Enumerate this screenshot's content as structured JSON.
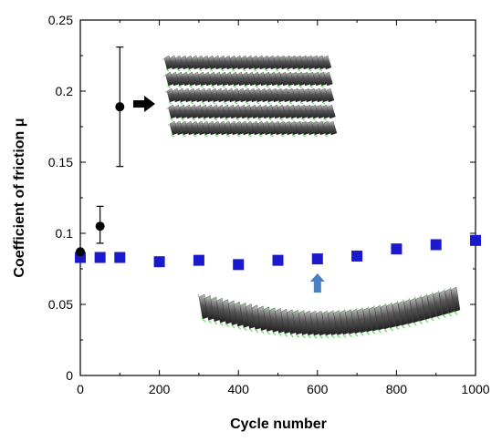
{
  "chart_data": {
    "type": "scatter",
    "xlabel": "Cycle number",
    "ylabel": "Coefficient of friction μ",
    "xlim": [
      0,
      1000
    ],
    "ylim": [
      0,
      0.25
    ],
    "x_ticks": [
      "0",
      "200",
      "400",
      "600",
      "800",
      "1000"
    ],
    "x_tick_values": [
      0,
      200,
      400,
      600,
      800,
      1000
    ],
    "y_ticks": [
      "0",
      "0.05",
      "0.1",
      "0.15",
      "0.2",
      "0.25"
    ],
    "y_tick_values": [
      0,
      0.05,
      0.1,
      0.15,
      0.2,
      0.25
    ],
    "grid": false,
    "series": [
      {
        "marker": "circle",
        "color": "#000000",
        "points": [
          {
            "x": 0,
            "y": 0.087,
            "err_low": 0.087,
            "err_high": 0.087
          },
          {
            "x": 50,
            "y": 0.105,
            "err_low": 0.093,
            "err_high": 0.119
          },
          {
            "x": 100,
            "y": 0.189,
            "err_low": 0.147,
            "err_high": 0.231
          }
        ]
      },
      {
        "marker": "square",
        "color": "#1a1acc",
        "points": [
          {
            "x": 0,
            "y": 0.083
          },
          {
            "x": 50,
            "y": 0.083
          },
          {
            "x": 100,
            "y": 0.083
          },
          {
            "x": 200,
            "y": 0.08
          },
          {
            "x": 300,
            "y": 0.081
          },
          {
            "x": 400,
            "y": 0.078
          },
          {
            "x": 500,
            "y": 0.081
          },
          {
            "x": 600,
            "y": 0.082
          },
          {
            "x": 700,
            "y": 0.084
          },
          {
            "x": 800,
            "y": 0.089
          },
          {
            "x": 900,
            "y": 0.092
          },
          {
            "x": 1000,
            "y": 0.095
          }
        ]
      }
    ],
    "annotations": [
      {
        "kind": "arrow",
        "direction": "right",
        "color": "#000000",
        "points_to": "stacked multilayer structure illustration"
      },
      {
        "kind": "arrow",
        "direction": "up",
        "color": "#4a7fc1",
        "points_to": "curved single layer structure illustration"
      }
    ]
  }
}
